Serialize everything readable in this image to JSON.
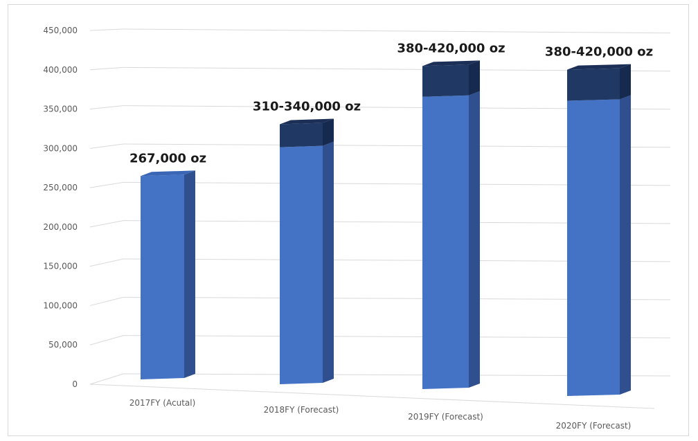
{
  "chart_data": {
    "type": "bar",
    "stacked": true,
    "three_d": true,
    "categories": [
      "2017FY (Acutal)",
      "2018FY (Forecast)",
      "2019FY (Forecast)",
      "2020FY (Forecast)"
    ],
    "series": [
      {
        "values": [
          267000,
          310000,
          380000,
          380000
        ],
        "color": "#4472c4"
      },
      {
        "values": [
          0,
          30000,
          40000,
          40000
        ],
        "color": "#203864"
      }
    ],
    "data_labels": [
      "267,000 oz",
      "310-340,000 oz",
      "380-420,000 oz",
      "380-420,000 oz"
    ],
    "y_ticks": [
      "0",
      "50,000",
      "100,000",
      "150,000",
      "200,000",
      "250,000",
      "300,000",
      "350,000",
      "400,000",
      "450,000"
    ],
    "ylim": [
      0,
      450000
    ],
    "grid": true,
    "legend": "none",
    "title": "",
    "xlabel": "",
    "ylabel": ""
  }
}
